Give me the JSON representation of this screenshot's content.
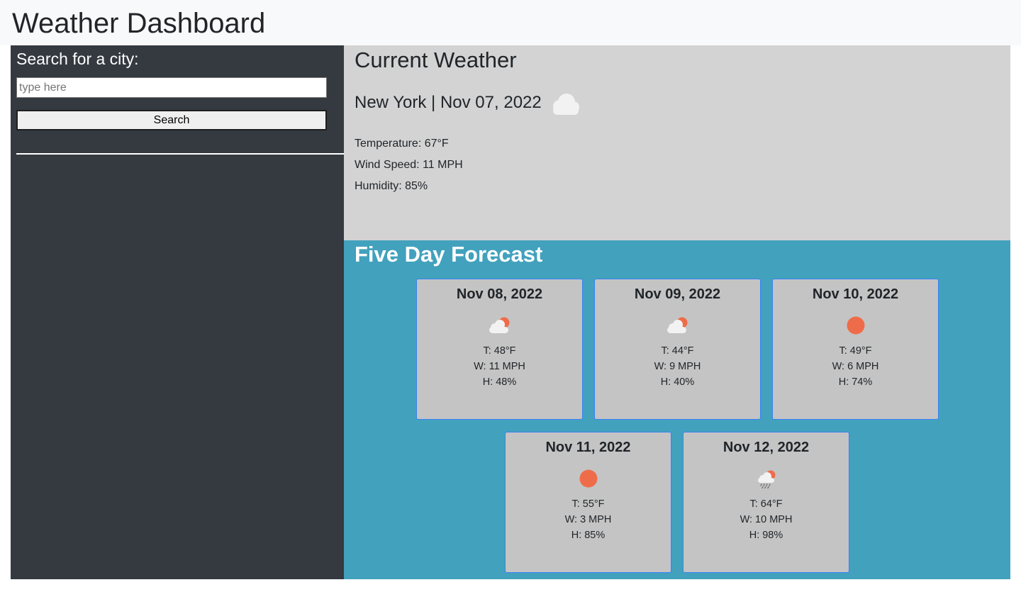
{
  "header": {
    "title": "Weather Dashboard"
  },
  "sidebar": {
    "search_label": "Search for a city:",
    "search_placeholder": "type here",
    "search_value": "",
    "search_button_label": "Search"
  },
  "current": {
    "heading": "Current Weather",
    "city_date": "New York | Nov 07, 2022",
    "icon": "cloud-icon",
    "temperature": "Temperature: 67°F",
    "wind": "Wind Speed: 11 MPH",
    "humidity": "Humidity: 85%"
  },
  "forecast": {
    "heading": "Five Day Forecast",
    "days": [
      {
        "date": "Nov 08, 2022",
        "icon": "partly-cloudy-icon",
        "temp": "T: 48°F",
        "wind": "W: 11 MPH",
        "humidity": "H: 48%"
      },
      {
        "date": "Nov 09, 2022",
        "icon": "partly-cloudy-icon",
        "temp": "T: 44°F",
        "wind": "W: 9 MPH",
        "humidity": "H: 40%"
      },
      {
        "date": "Nov 10, 2022",
        "icon": "sun-icon",
        "temp": "T: 49°F",
        "wind": "W: 6 MPH",
        "humidity": "H: 74%"
      },
      {
        "date": "Nov 11, 2022",
        "icon": "sun-icon",
        "temp": "T: 55°F",
        "wind": "W: 3 MPH",
        "humidity": "H: 85%"
      },
      {
        "date": "Nov 12, 2022",
        "icon": "rain-sun-icon",
        "temp": "T: 64°F",
        "wind": "W: 10 MPH",
        "humidity": "H: 98%"
      }
    ]
  },
  "colors": {
    "sidebar_bg": "#343a40",
    "current_bg": "#d3d3d3",
    "forecast_bg": "#42a1bd",
    "card_bg": "#c4c4c4",
    "sun": "#ef6c4a"
  }
}
